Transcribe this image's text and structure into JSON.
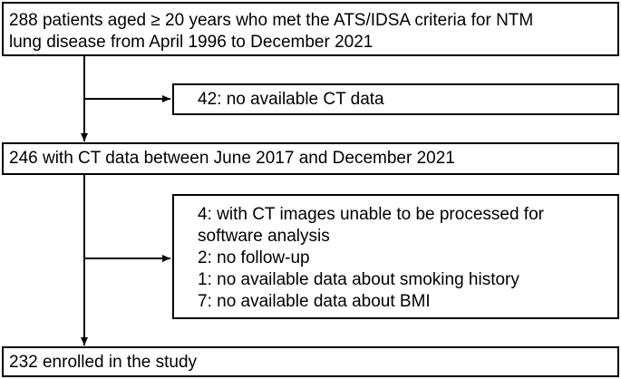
{
  "nodes": [
    {
      "lines": [
        "288 patients aged ≥ 20 years who met the ATS/IDSA criteria for NTM",
        "lung disease from April 1996 to December 2021"
      ]
    },
    {
      "lines": [
        "246 with CT data between June 2017 and December 2021"
      ]
    },
    {
      "lines": [
        "232 enrolled in the study"
      ]
    }
  ],
  "exclusions": [
    {
      "items": [
        "42: no available CT data"
      ]
    },
    {
      "items": [
        "4: with CT images unable to be processed for software analysis",
        "2: no follow-up",
        "1: no available data about smoking history",
        "7: no available data about BMI"
      ]
    }
  ]
}
